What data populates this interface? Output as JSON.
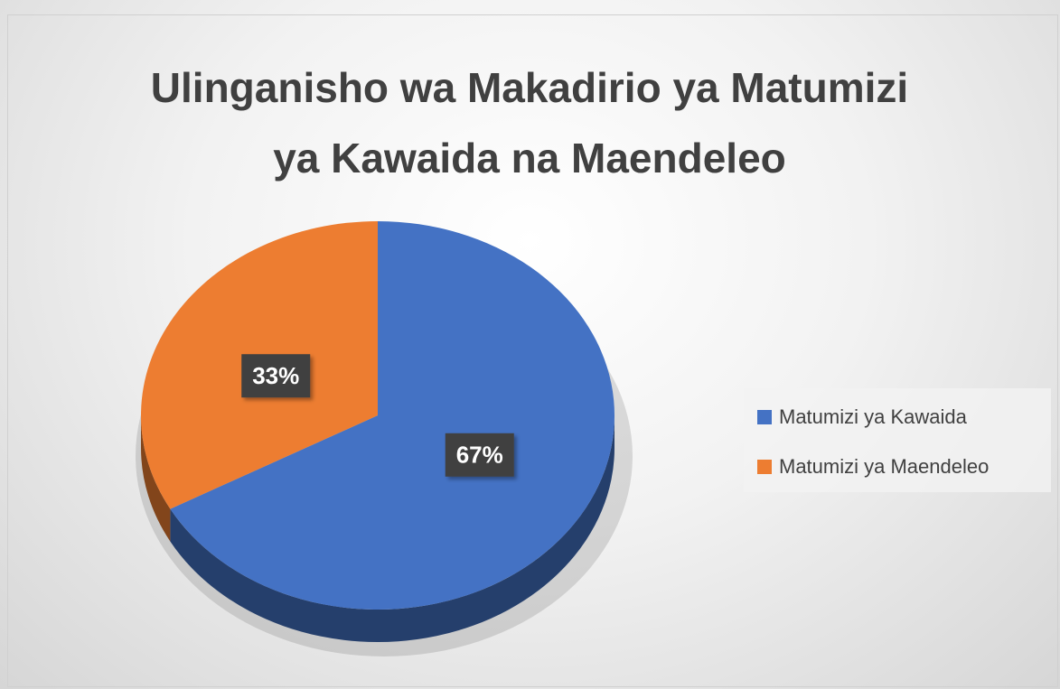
{
  "chart_data": {
    "type": "pie",
    "title": "Ulinganisho wa Makadirio ya Matumizi ya Kawaida na Maendeleo",
    "categories": [
      "Matumizi ya Kawaida",
      "Matumizi ya Maendeleo"
    ],
    "values": [
      67,
      33
    ],
    "value_labels": [
      "67%",
      "33%"
    ],
    "colors": [
      "#4472c4",
      "#ed7d31"
    ],
    "legend": "right"
  }
}
